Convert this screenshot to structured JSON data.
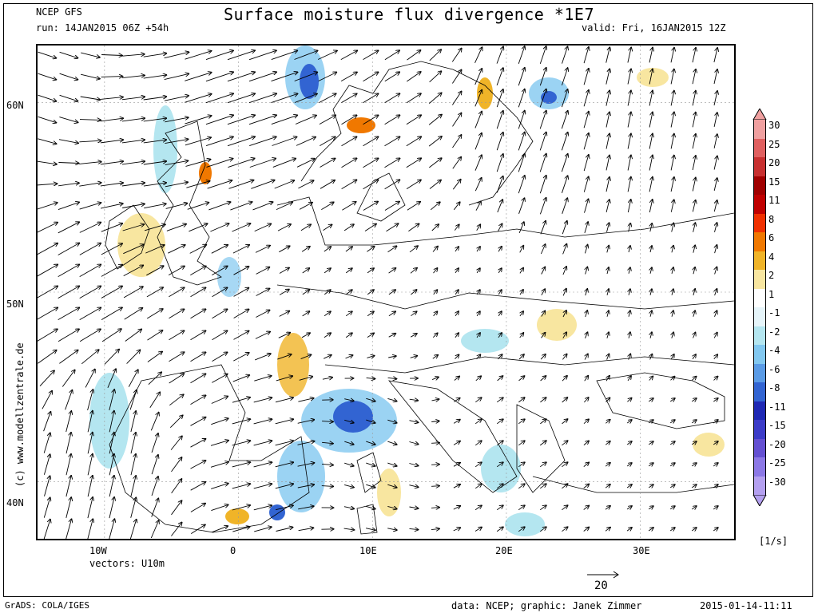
{
  "header": {
    "model": "NCEP GFS",
    "run": "run: 14JAN2015 06Z +54h",
    "title": "Surface moisture flux divergence *1E7",
    "valid": "valid: Fri, 16JAN2015 12Z"
  },
  "axes": {
    "lat_labels": [
      {
        "label": "60N",
        "lat": 60
      },
      {
        "label": "50N",
        "lat": 50
      },
      {
        "label": "40N",
        "lat": 40
      }
    ],
    "lon_labels": [
      {
        "label": "10W",
        "lon": -10
      },
      {
        "label": "0",
        "lon": 0
      },
      {
        "label": "10E",
        "lon": 10
      },
      {
        "label": "20E",
        "lon": 20
      },
      {
        "label": "30E",
        "lon": 30
      }
    ]
  },
  "vectors_label": "vectors: U10m",
  "vector_ref": "20",
  "credit_vertical": "(c)  www.modellzentrale.de",
  "colorbar": {
    "unit": "[1/s]",
    "levels": [
      "30",
      "25",
      "20",
      "15",
      "11",
      "8",
      "6",
      "4",
      "2",
      "1",
      "-1",
      "-2",
      "-4",
      "-6",
      "-8",
      "-11",
      "-15",
      "-20",
      "-25",
      "-30"
    ],
    "colors": [
      "#f0a0a0",
      "#e06060",
      "#c83030",
      "#a00000",
      "#c00000",
      "#f03000",
      "#f07800",
      "#f0b428",
      "#f8e6a0",
      "#ffffff",
      "#e6f5fa",
      "#b4e6f0",
      "#82c8f0",
      "#5a9be6",
      "#3264d2",
      "#1e28b4",
      "#3c3cc8",
      "#6450d2",
      "#8c78e6",
      "#b4a0f0"
    ]
  },
  "footer": {
    "grads": "GrADS: COLA/IGES",
    "data": "data: NCEP; graphic: Janek Zimmer",
    "timestamp": "2015-01-14-11:11"
  },
  "map": {
    "lon_range": [
      -15,
      37
    ],
    "lat_range": [
      37,
      63
    ],
    "wind_field": [
      {
        "lon": -14,
        "lat": 61,
        "u": 12,
        "v": -4
      },
      {
        "lon": -8,
        "lat": 58,
        "u": 15,
        "v": 2
      },
      {
        "lon": 0,
        "lat": 60,
        "u": 18,
        "v": 6
      },
      {
        "lon": 10,
        "lat": 57,
        "u": 10,
        "v": 6
      },
      {
        "lon": 22,
        "lat": 58,
        "u": 4,
        "v": 12
      },
      {
        "lon": 30,
        "lat": 58,
        "u": 2,
        "v": 10
      },
      {
        "lon": -12,
        "lat": 50,
        "u": 14,
        "v": 8
      },
      {
        "lon": -3,
        "lat": 48,
        "u": 10,
        "v": 6
      },
      {
        "lon": 8,
        "lat": 50,
        "u": 4,
        "v": 3
      },
      {
        "lon": 18,
        "lat": 50,
        "u": 2,
        "v": 3
      },
      {
        "lon": 30,
        "lat": 50,
        "u": 1,
        "v": 4
      },
      {
        "lon": -10,
        "lat": 42,
        "u": 3,
        "v": 14
      },
      {
        "lon": 2,
        "lat": 42,
        "u": 12,
        "v": 3
      },
      {
        "lon": 10,
        "lat": 42,
        "u": 6,
        "v": -2
      },
      {
        "lon": 20,
        "lat": 42,
        "u": 4,
        "v": 3
      },
      {
        "lon": 32,
        "lat": 42,
        "u": 3,
        "v": 2
      }
    ]
  }
}
